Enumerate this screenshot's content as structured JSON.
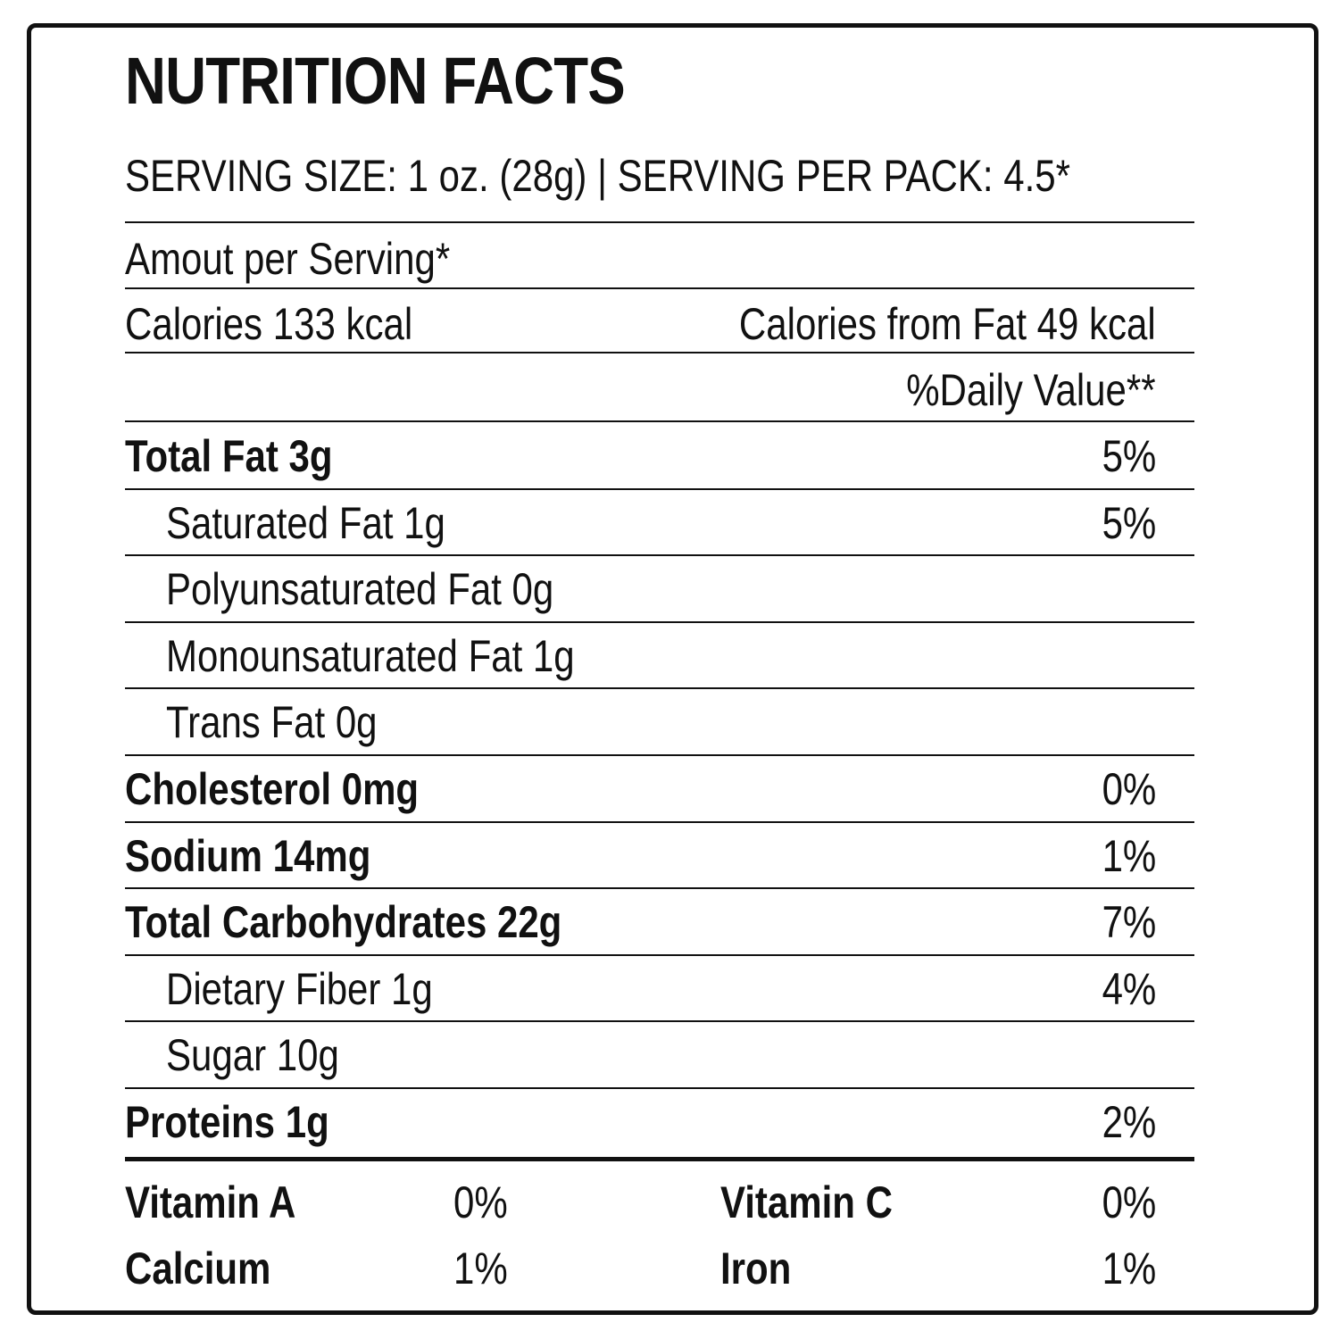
{
  "label": {
    "title": "NUTRITION FACTS",
    "serving_line": "SERVING SIZE: 1 oz. (28g) | SERVING PER PACK: 4.5*",
    "amount_per_serving": "Amout per Serving*",
    "calories": "Calories 133 kcal",
    "calories_from_fat": "Calories from Fat 49 kcal",
    "daily_value_header": "%Daily Value**",
    "nutrients": [
      {
        "label": "Total Fat 3g",
        "pct": "5%",
        "bold": true,
        "indent": false
      },
      {
        "label": "Saturated Fat 1g",
        "pct": "5%",
        "bold": false,
        "indent": true
      },
      {
        "label": "Polyunsaturated Fat 0g",
        "pct": "",
        "bold": false,
        "indent": true
      },
      {
        "label": "Monounsaturated Fat 1g",
        "pct": "",
        "bold": false,
        "indent": true
      },
      {
        "label": "Trans Fat 0g",
        "pct": "",
        "bold": false,
        "indent": true
      },
      {
        "label": "Cholesterol 0mg",
        "pct": "0%",
        "bold": true,
        "indent": false
      },
      {
        "label": "Sodium 14mg",
        "pct": "1%",
        "bold": true,
        "indent": false
      },
      {
        "label": "Total Carbohydrates 22g",
        "pct": "7%",
        "bold": true,
        "indent": false
      },
      {
        "label": "Dietary Fiber 1g",
        "pct": "4%",
        "bold": false,
        "indent": true
      },
      {
        "label": "Sugar 10g",
        "pct": "",
        "bold": false,
        "indent": true
      },
      {
        "label": "Proteins 1g",
        "pct": "2%",
        "bold": true,
        "indent": false
      }
    ],
    "vitamins": [
      {
        "left_name": "Vitamin A",
        "left_pct": "0%",
        "right_name": "Vitamin C",
        "right_pct": "0%"
      },
      {
        "left_name": "Calcium",
        "left_pct": "1%",
        "right_name": "Iron",
        "right_pct": "1%"
      }
    ]
  }
}
